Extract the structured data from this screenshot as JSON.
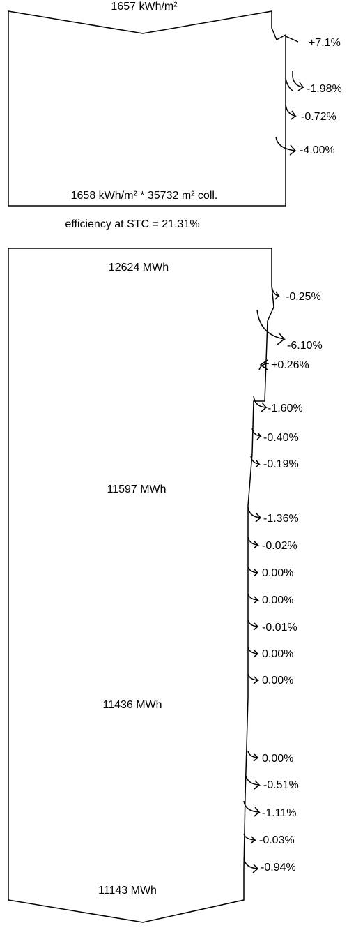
{
  "diagram": {
    "header_irradiation": "1657 kWh/m²",
    "collector_irradiation": "1658 kWh/m² * 35732 m² coll.",
    "efficiency_label": "efficiency at STC = 21.31%",
    "energy_values": {
      "array_nominal": "12624 MWh",
      "array_virtual": "11597 MWh",
      "array_available": "11436 MWh",
      "grid_injected": "11143 MWh"
    },
    "irradiance_steps": [
      "+7.1%",
      "-1.98%",
      "-0.72%",
      "-4.00%"
    ],
    "array_steps": [
      "-0.25%",
      "-6.10%",
      "+0.26%",
      "-1.60%",
      "-0.40%",
      "-0.19%"
    ],
    "inverter_steps": [
      "-1.36%",
      "-0.02%",
      "0.00%",
      "0.00%",
      "-0.01%",
      "0.00%",
      "0.00%"
    ],
    "system_steps": [
      "0.00%",
      "-0.51%",
      "-1.11%",
      "-0.03%",
      "-0.94%"
    ]
  }
}
